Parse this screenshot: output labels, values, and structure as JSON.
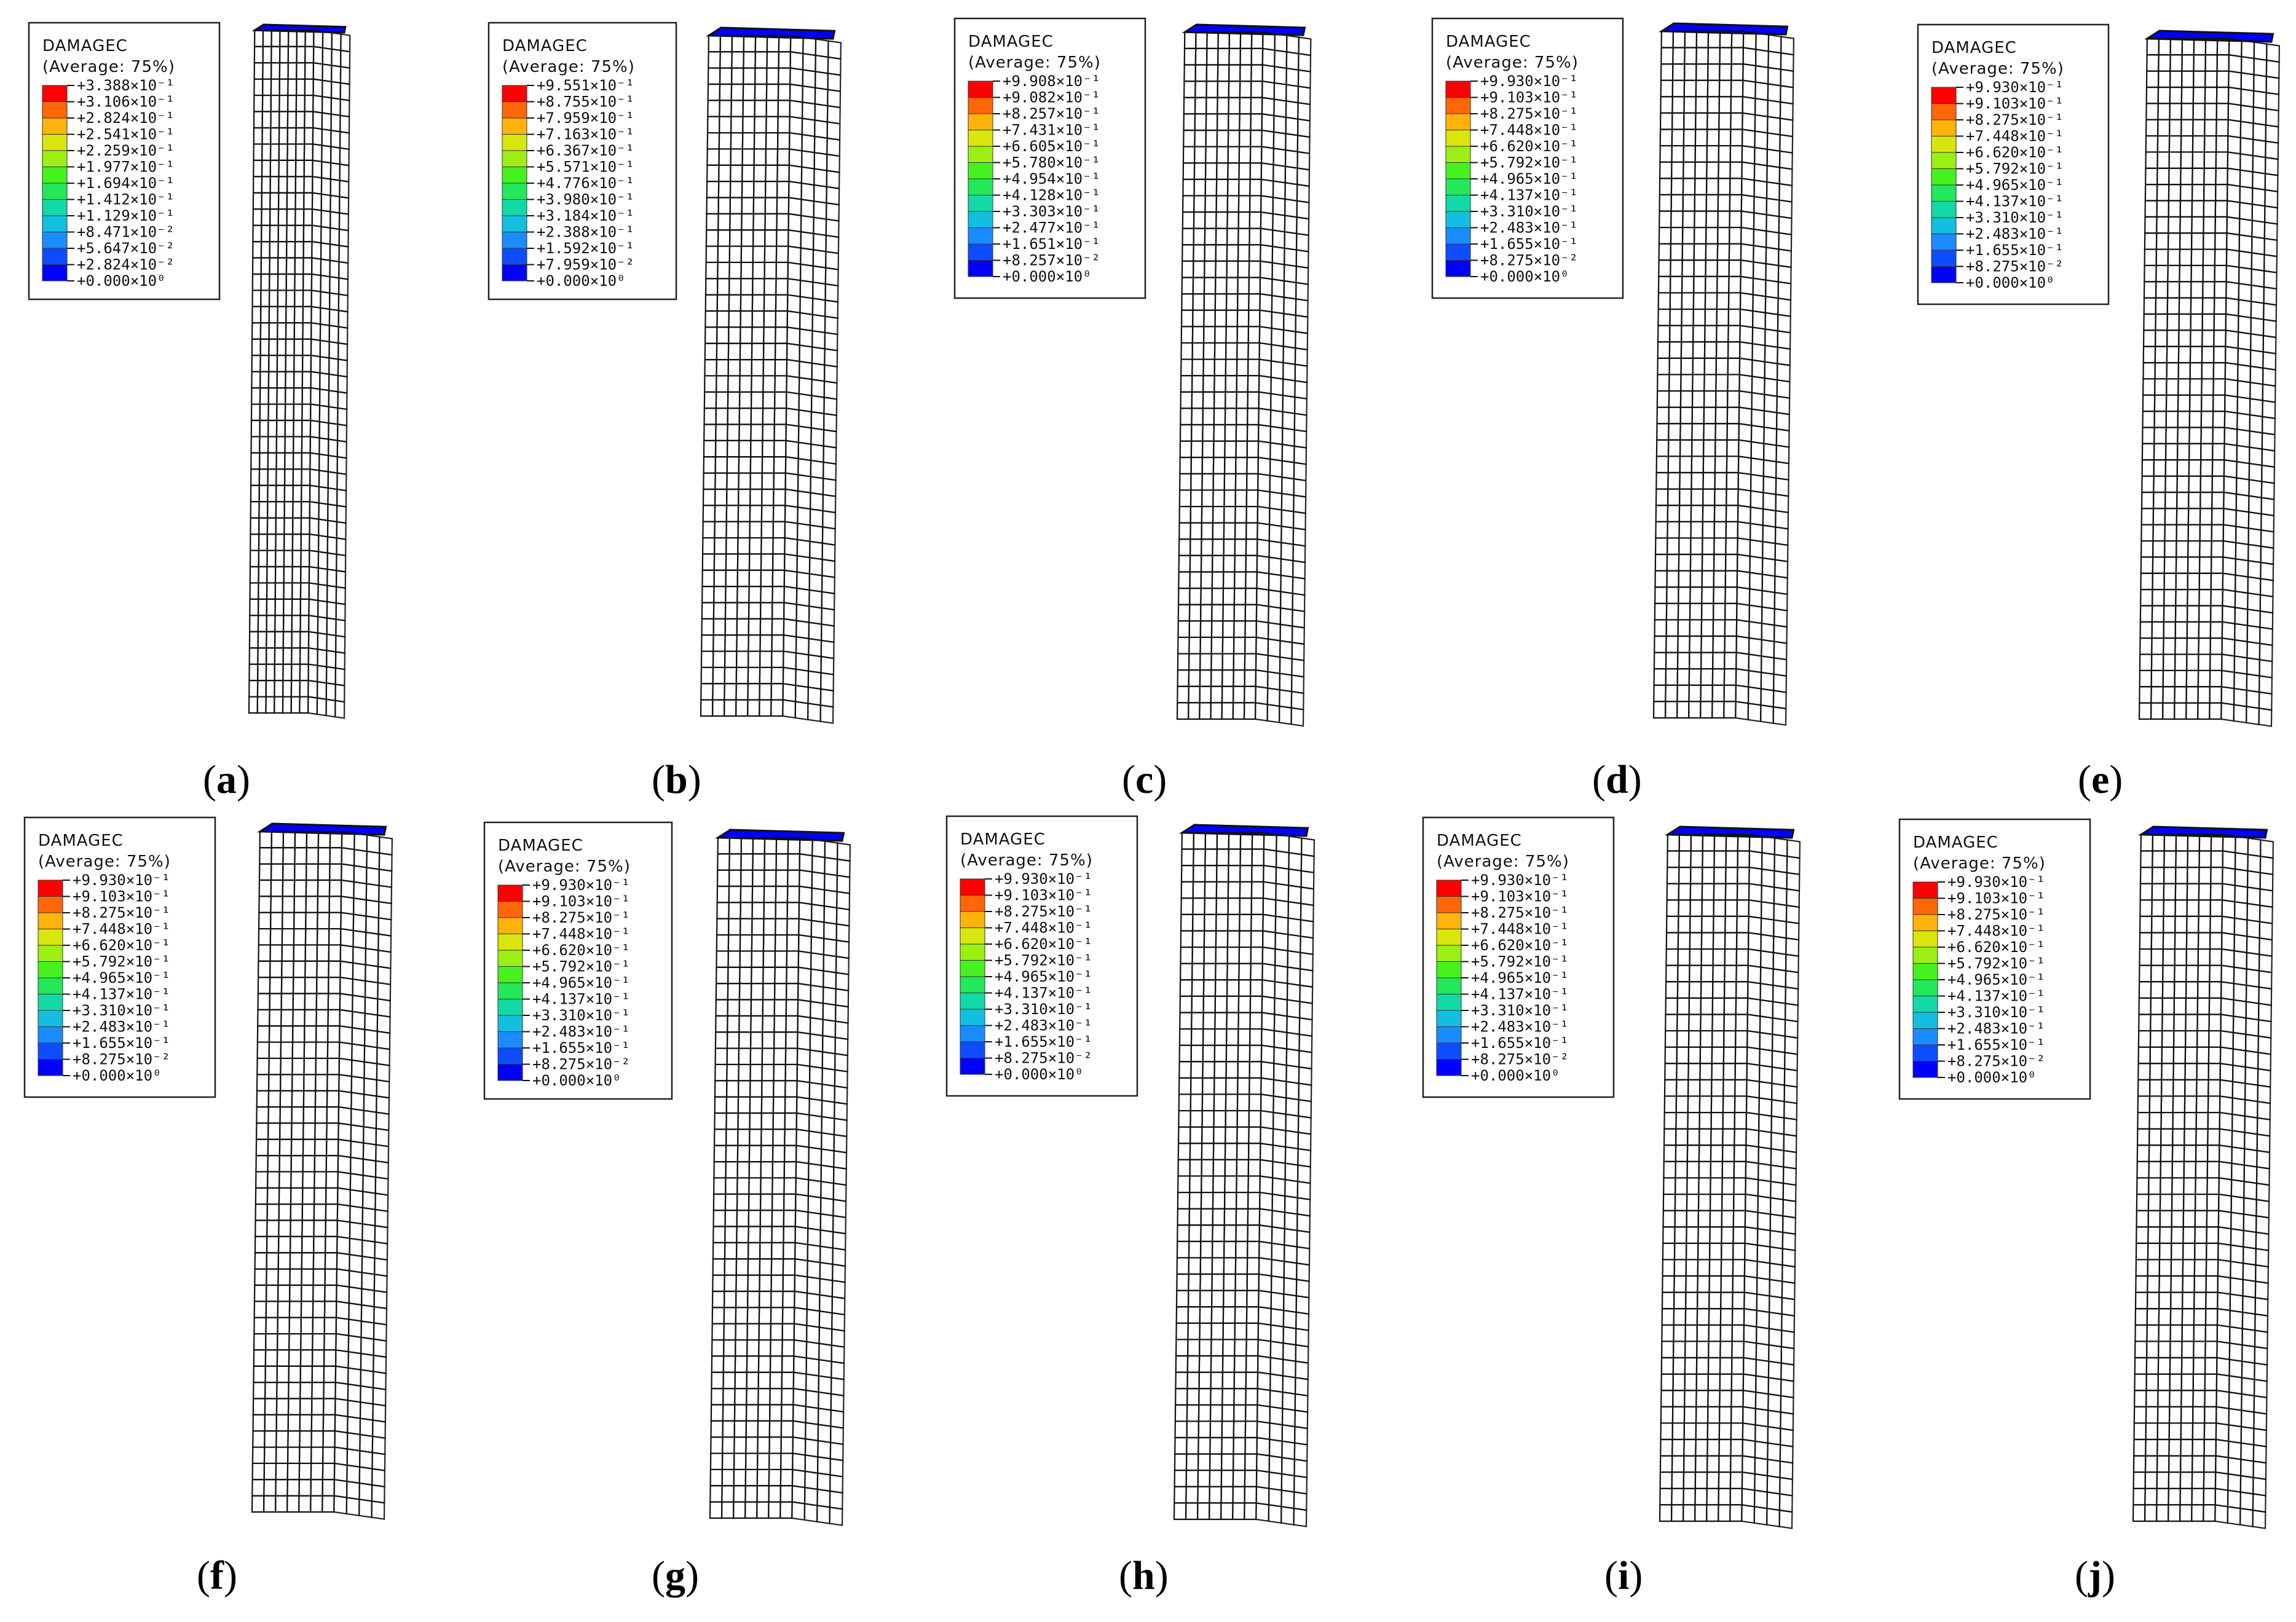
{
  "colors": {
    "scale": [
      "#0000ff",
      "#0d4dff",
      "#1a8cff",
      "#13bfe0",
      "#12d9a6",
      "#22e85a",
      "#46f21e",
      "#9bef12",
      "#d9e60c",
      "#ffb30a",
      "#ff6608",
      "#ff0000"
    ],
    "background": "#ffffff"
  },
  "panels": [
    {
      "id": "a",
      "label": "a",
      "legend": {
        "title": "DAMAGEC",
        "subtitle": "(Average: 75%)",
        "values": [
          "+3.388×10⁻¹",
          "+3.106×10⁻¹",
          "+2.824×10⁻¹",
          "+2.541×10⁻¹",
          "+2.259×10⁻¹",
          "+1.977×10⁻¹",
          "+1.694×10⁻¹",
          "+1.412×10⁻¹",
          "+1.129×10⁻¹",
          "+8.471×10⁻²",
          "+5.647×10⁻²",
          "+2.824×10⁻²",
          "+0.000×10⁰"
        ]
      },
      "top_zone": {
        "start": 0.07,
        "end": 0.18,
        "level": 0.35
      },
      "bottom_zone": {
        "start": 0.82,
        "end": 0.93,
        "level": 0.1
      }
    },
    {
      "id": "b",
      "label": "b",
      "legend": {
        "title": "DAMAGEC",
        "subtitle": "(Average: 75%)",
        "values": [
          "+9.551×10⁻¹",
          "+8.755×10⁻¹",
          "+7.959×10⁻¹",
          "+7.163×10⁻¹",
          "+6.367×10⁻¹",
          "+5.571×10⁻¹",
          "+4.776×10⁻¹",
          "+3.980×10⁻¹",
          "+3.184×10⁻¹",
          "+2.388×10⁻¹",
          "+1.592×10⁻¹",
          "+7.959×10⁻²",
          "+0.000×10⁰"
        ]
      },
      "top_zone": {
        "start": 0.08,
        "end": 0.19,
        "level": 0.75
      },
      "bottom_zone": {
        "start": 0.77,
        "end": 0.92,
        "level": 0.35
      }
    },
    {
      "id": "c",
      "label": "c",
      "legend": {
        "title": "DAMAGEC",
        "subtitle": "(Average: 75%)",
        "values": [
          "+9.908×10⁻¹",
          "+9.082×10⁻¹",
          "+8.257×10⁻¹",
          "+7.431×10⁻¹",
          "+6.605×10⁻¹",
          "+5.780×10⁻¹",
          "+4.954×10⁻¹",
          "+4.128×10⁻¹",
          "+3.303×10⁻¹",
          "+2.477×10⁻¹",
          "+1.651×10⁻¹",
          "+8.257×10⁻²",
          "+0.000×10⁰"
        ]
      },
      "top_zone": {
        "start": 0.07,
        "end": 0.19,
        "level": 0.8
      },
      "bottom_zone": {
        "start": 0.76,
        "end": 0.94,
        "level": 0.75
      }
    },
    {
      "id": "d",
      "label": "d",
      "legend": {
        "title": "DAMAGEC",
        "subtitle": "(Average: 75%)",
        "values": [
          "+9.930×10⁻¹",
          "+9.103×10⁻¹",
          "+8.275×10⁻¹",
          "+7.448×10⁻¹",
          "+6.620×10⁻¹",
          "+5.792×10⁻¹",
          "+4.965×10⁻¹",
          "+4.137×10⁻¹",
          "+3.310×10⁻¹",
          "+2.483×10⁻¹",
          "+1.655×10⁻¹",
          "+8.275×10⁻²",
          "+0.000×10⁰"
        ]
      },
      "top_zone": {
        "start": 0.06,
        "end": 0.24,
        "level": 0.85
      },
      "bottom_zone": {
        "start": 0.75,
        "end": 0.93,
        "level": 0.85
      }
    },
    {
      "id": "e",
      "label": "e",
      "legend": {
        "title": "DAMAGEC",
        "subtitle": "(Average: 75%)",
        "values": [
          "+9.930×10⁻¹",
          "+9.103×10⁻¹",
          "+8.275×10⁻¹",
          "+7.448×10⁻¹",
          "+6.620×10⁻¹",
          "+5.792×10⁻¹",
          "+4.965×10⁻¹",
          "+4.137×10⁻¹",
          "+3.310×10⁻¹",
          "+2.483×10⁻¹",
          "+1.655×10⁻¹",
          "+8.275×10⁻²",
          "+0.000×10⁰"
        ]
      },
      "top_zone": {
        "start": 0.08,
        "end": 0.3,
        "level": 0.9
      },
      "bottom_zone": {
        "start": 0.74,
        "end": 0.94,
        "level": 0.9
      }
    },
    {
      "id": "f",
      "label": "f",
      "legend": {
        "title": "DAMAGEC",
        "subtitle": "(Average: 75%)",
        "values": [
          "+9.930×10⁻¹",
          "+9.103×10⁻¹",
          "+8.275×10⁻¹",
          "+7.448×10⁻¹",
          "+6.620×10⁻¹",
          "+5.792×10⁻¹",
          "+4.965×10⁻¹",
          "+4.137×10⁻¹",
          "+3.310×10⁻¹",
          "+2.483×10⁻¹",
          "+1.655×10⁻¹",
          "+8.275×10⁻²",
          "+0.000×10⁰"
        ]
      },
      "top_zone": {
        "start": 0.04,
        "end": 0.29,
        "level": 0.95
      },
      "bottom_zone": {
        "start": 0.73,
        "end": 0.95,
        "level": 0.95
      }
    },
    {
      "id": "g",
      "label": "g",
      "legend": {
        "title": "DAMAGEC",
        "subtitle": "(Average: 75%)",
        "values": [
          "+9.930×10⁻¹",
          "+9.103×10⁻¹",
          "+8.275×10⁻¹",
          "+7.448×10⁻¹",
          "+6.620×10⁻¹",
          "+5.792×10⁻¹",
          "+4.965×10⁻¹",
          "+4.137×10⁻¹",
          "+3.310×10⁻¹",
          "+2.483×10⁻¹",
          "+1.655×10⁻¹",
          "+8.275×10⁻²",
          "+0.000×10⁰"
        ]
      },
      "top_zone": {
        "start": 0.04,
        "end": 0.3,
        "level": 0.97
      },
      "bottom_zone": {
        "start": 0.7,
        "end": 0.95,
        "level": 0.97
      }
    },
    {
      "id": "h",
      "label": "h",
      "legend": {
        "title": "DAMAGEC",
        "subtitle": "(Average: 75%)",
        "values": [
          "+9.930×10⁻¹",
          "+9.103×10⁻¹",
          "+8.275×10⁻¹",
          "+7.448×10⁻¹",
          "+6.620×10⁻¹",
          "+5.792×10⁻¹",
          "+4.965×10⁻¹",
          "+4.137×10⁻¹",
          "+3.310×10⁻¹",
          "+2.483×10⁻¹",
          "+1.655×10⁻¹",
          "+8.275×10⁻²",
          "+0.000×10⁰"
        ]
      },
      "top_zone": {
        "start": 0.04,
        "end": 0.3,
        "level": 0.98
      },
      "bottom_zone": {
        "start": 0.7,
        "end": 0.95,
        "level": 0.98
      }
    },
    {
      "id": "i",
      "label": "i",
      "legend": {
        "title": "DAMAGEC",
        "subtitle": "(Average: 75%)",
        "values": [
          "+9.930×10⁻¹",
          "+9.103×10⁻¹",
          "+8.275×10⁻¹",
          "+7.448×10⁻¹",
          "+6.620×10⁻¹",
          "+5.792×10⁻¹",
          "+4.965×10⁻¹",
          "+4.137×10⁻¹",
          "+3.310×10⁻¹",
          "+2.483×10⁻¹",
          "+1.655×10⁻¹",
          "+8.275×10⁻²",
          "+0.000×10⁰"
        ]
      },
      "top_zone": {
        "start": 0.04,
        "end": 0.32,
        "level": 0.99
      },
      "bottom_zone": {
        "start": 0.68,
        "end": 0.93,
        "level": 0.99
      }
    },
    {
      "id": "j",
      "label": "j",
      "legend": {
        "title": "DAMAGEC",
        "subtitle": "(Average: 75%)",
        "values": [
          "+9.930×10⁻¹",
          "+9.103×10⁻¹",
          "+8.275×10⁻¹",
          "+7.448×10⁻¹",
          "+6.620×10⁻¹",
          "+5.792×10⁻¹",
          "+4.965×10⁻¹",
          "+4.137×10⁻¹",
          "+3.310×10⁻¹",
          "+2.483×10⁻¹",
          "+1.655×10⁻¹",
          "+8.275×10⁻²",
          "+0.000×10⁰"
        ]
      },
      "top_zone": {
        "start": 0.04,
        "end": 0.3,
        "level": 0.99
      },
      "bottom_zone": {
        "start": 0.68,
        "end": 0.94,
        "level": 0.99
      }
    }
  ]
}
